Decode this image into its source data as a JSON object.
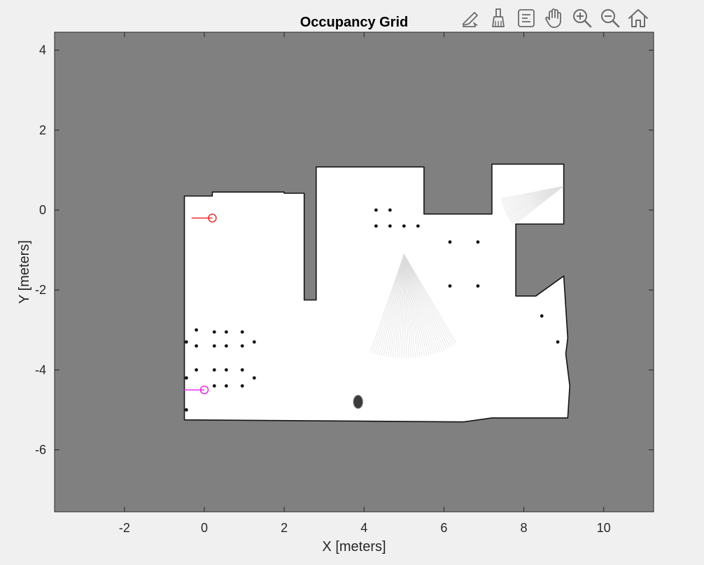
{
  "toolbar": {
    "items": [
      {
        "name": "edit-plot-icon"
      },
      {
        "name": "brush-icon"
      },
      {
        "name": "data-tips-icon"
      },
      {
        "name": "pan-hand-icon"
      },
      {
        "name": "zoom-in-icon"
      },
      {
        "name": "zoom-out-icon"
      },
      {
        "name": "home-icon"
      }
    ]
  },
  "colors": {
    "unknown": "#808080",
    "free": "#ffffff",
    "occupied": "#141414",
    "figure_bg": "#f0f0f0",
    "marker_red": "#e8201e",
    "marker_magenta": "#e61ee6"
  },
  "chart_data": {
    "type": "heatmap",
    "title": "Occupancy Grid",
    "xlabel": "X [meters]",
    "ylabel": "Y [meters]",
    "xlim": [
      -3.75,
      11.25
    ],
    "ylim": [
      -7.55,
      4.45
    ],
    "xticks": [
      -2,
      0,
      2,
      4,
      6,
      8,
      10
    ],
    "yticks": [
      -6,
      -4,
      -2,
      0,
      2,
      4
    ],
    "grid": false,
    "legend": "none",
    "free_regions": [
      [
        [
          -0.5,
          0.35
        ],
        [
          0.2,
          0.35
        ],
        [
          0.2,
          0.45
        ],
        [
          2.0,
          0.45
        ],
        [
          2.0,
          0.42
        ],
        [
          2.5,
          0.42
        ],
        [
          2.5,
          -2.25
        ],
        [
          2.8,
          -2.25
        ],
        [
          2.8,
          1.08
        ],
        [
          5.5,
          1.08
        ],
        [
          5.5,
          -0.1
        ],
        [
          7.2,
          -0.1
        ],
        [
          7.2,
          1.15
        ],
        [
          9.0,
          1.15
        ],
        [
          9.0,
          -0.35
        ],
        [
          7.8,
          -0.35
        ],
        [
          7.8,
          -2.15
        ],
        [
          8.3,
          -2.15
        ],
        [
          9.0,
          -1.65
        ],
        [
          9.1,
          -3.2
        ],
        [
          9.05,
          -3.6
        ],
        [
          9.15,
          -4.4
        ],
        [
          9.1,
          -5.2
        ],
        [
          7.2,
          -5.2
        ],
        [
          6.5,
          -5.3
        ],
        [
          -0.5,
          -5.25
        ]
      ]
    ],
    "obstacle_points": [
      [
        -0.45,
        -3.3
      ],
      [
        -0.2,
        -3.0
      ],
      [
        0.25,
        -3.05
      ],
      [
        0.55,
        -3.05
      ],
      [
        0.95,
        -3.05
      ],
      [
        -0.2,
        -3.4
      ],
      [
        0.25,
        -3.4
      ],
      [
        0.55,
        -3.4
      ],
      [
        0.95,
        -3.4
      ],
      [
        1.25,
        -3.3
      ],
      [
        -0.2,
        -4.0
      ],
      [
        0.25,
        -4.0
      ],
      [
        0.55,
        -4.0
      ],
      [
        0.95,
        -4.0
      ],
      [
        1.25,
        -4.2
      ],
      [
        -0.45,
        -4.2
      ],
      [
        0.25,
        -4.4
      ],
      [
        0.55,
        -4.4
      ],
      [
        0.95,
        -4.4
      ],
      [
        4.3,
        -0.4
      ],
      [
        4.65,
        -0.4
      ],
      [
        5.0,
        -0.4
      ],
      [
        5.35,
        -0.4
      ],
      [
        4.3,
        0.0
      ],
      [
        4.65,
        0.0
      ],
      [
        6.15,
        -0.8
      ],
      [
        6.85,
        -0.8
      ],
      [
        6.15,
        -1.9
      ],
      [
        6.85,
        -1.9
      ],
      [
        8.45,
        -2.65
      ],
      [
        8.85,
        -3.3
      ],
      [
        -0.45,
        -5.0
      ]
    ],
    "obstacle_blobs": [
      {
        "x": 3.85,
        "y": -4.8,
        "r": 0.12
      }
    ],
    "markers": [
      {
        "x": 0.2,
        "y": -0.2,
        "heading": 180,
        "color": "#e8201e"
      },
      {
        "x": 0.0,
        "y": -4.5,
        "heading": 180,
        "color": "#e61ee6"
      }
    ]
  }
}
